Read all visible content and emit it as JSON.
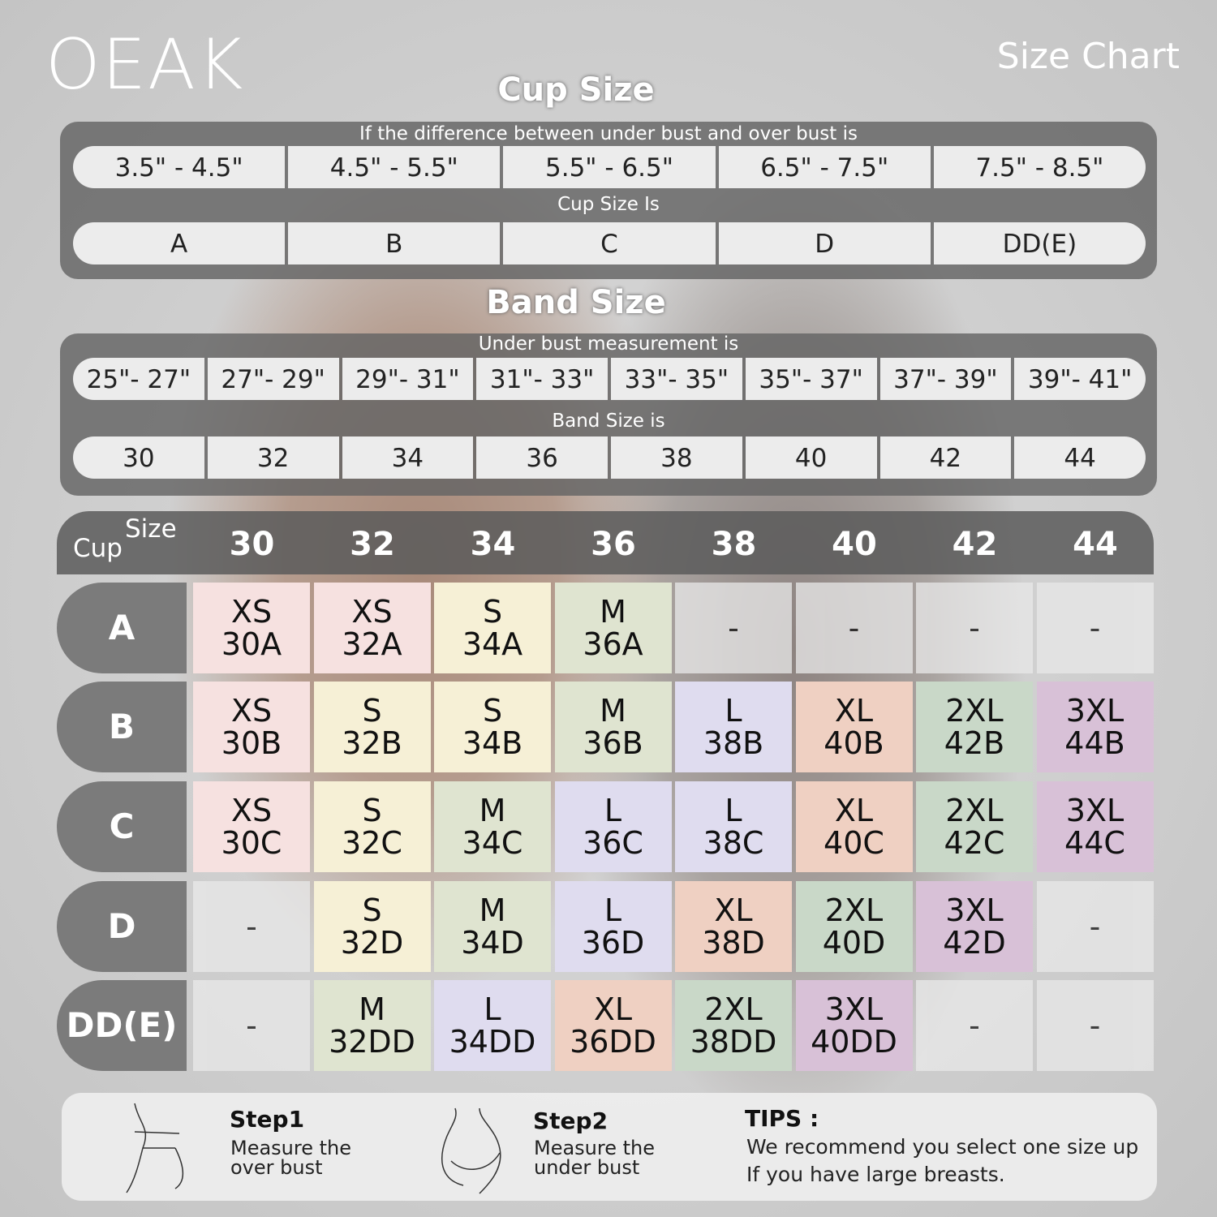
{
  "brand": "OEAK",
  "title": "Size Chart",
  "cup_section": {
    "title": "Cup Size",
    "sub1": "If the  difference between under bust and over bust is",
    "ranges": [
      "3.5\" -  4.5\"",
      "4.5\" -  5.5\"",
      "5.5\" -  6.5\"",
      "6.5\" -  7.5\"",
      "7.5\" -  8.5\""
    ],
    "sub2": "Cup Size Is",
    "cups": [
      "A",
      "B",
      "C",
      "D",
      "DD(E)"
    ]
  },
  "band_section": {
    "title": "Band Size",
    "sub1": "Under bust measurement is",
    "ranges": [
      "25\"- 27\"",
      "27\"- 29\"",
      "29\"- 31\"",
      "31\"- 33\"",
      "33\"- 35\"",
      "35\"- 37\"",
      "37\"- 39\"",
      "39\"- 41\""
    ],
    "sub2": "Band Size is",
    "bands": [
      "30",
      "32",
      "34",
      "36",
      "38",
      "40",
      "42",
      "44"
    ]
  },
  "table": {
    "corner_cup": "Cup",
    "corner_size": "Size",
    "columns": [
      "30",
      "32",
      "34",
      "36",
      "38",
      "40",
      "42",
      "44"
    ],
    "colors": {
      "pink": "#f6e1e0",
      "yellow": "#f6f0d6",
      "sage": "#dfe4d0",
      "lavender": "#dfdcef",
      "peach": "#efd0c2",
      "green": "#c9d8c8",
      "purple": "#d8c1d7",
      "empty": "#e9e9e9"
    },
    "rows": [
      {
        "label": "A",
        "cells": [
          [
            "XS",
            "30A",
            "pink"
          ],
          [
            "XS",
            "32A",
            "pink"
          ],
          [
            "S",
            "34A",
            "yellow"
          ],
          [
            "M",
            "36A",
            "sage"
          ],
          [
            "-",
            "",
            "empty"
          ],
          [
            "-",
            "",
            "empty"
          ],
          [
            "-",
            "",
            "empty"
          ],
          [
            "-",
            "",
            "empty"
          ]
        ]
      },
      {
        "label": "B",
        "cells": [
          [
            "XS",
            "30B",
            "pink"
          ],
          [
            "S",
            "32B",
            "yellow"
          ],
          [
            "S",
            "34B",
            "yellow"
          ],
          [
            "M",
            "36B",
            "sage"
          ],
          [
            "L",
            "38B",
            "lavender"
          ],
          [
            "XL",
            "40B",
            "peach"
          ],
          [
            "2XL",
            "42B",
            "green"
          ],
          [
            "3XL",
            "44B",
            "purple"
          ]
        ]
      },
      {
        "label": "C",
        "cells": [
          [
            "XS",
            "30C",
            "pink"
          ],
          [
            "S",
            "32C",
            "yellow"
          ],
          [
            "M",
            "34C",
            "sage"
          ],
          [
            "L",
            "36C",
            "lavender"
          ],
          [
            "L",
            "38C",
            "lavender"
          ],
          [
            "XL",
            "40C",
            "peach"
          ],
          [
            "2XL",
            "42C",
            "green"
          ],
          [
            "3XL",
            "44C",
            "purple"
          ]
        ]
      },
      {
        "label": "D",
        "cells": [
          [
            "-",
            "",
            "empty"
          ],
          [
            "S",
            "32D",
            "yellow"
          ],
          [
            "M",
            "34D",
            "sage"
          ],
          [
            "L",
            "36D",
            "lavender"
          ],
          [
            "XL",
            "38D",
            "peach"
          ],
          [
            "2XL",
            "40D",
            "green"
          ],
          [
            "3XL",
            "42D",
            "purple"
          ],
          [
            "-",
            "",
            "empty"
          ]
        ]
      },
      {
        "label": "DD(E)",
        "cells": [
          [
            "-",
            "",
            "empty"
          ],
          [
            "M",
            "32DD",
            "sage"
          ],
          [
            "L",
            "34DD",
            "lavender"
          ],
          [
            "XL",
            "36DD",
            "peach"
          ],
          [
            "2XL",
            "38DD",
            "green"
          ],
          [
            "3XL",
            "40DD",
            "purple"
          ],
          [
            "-",
            "",
            "empty"
          ],
          [
            "-",
            "",
            "empty"
          ]
        ]
      }
    ]
  },
  "steps": {
    "step1_title": "Step1",
    "step1_line1": "Measure the",
    "step1_line2": "over bust",
    "step2_title": "Step2",
    "step2_line1": "Measure the",
    "step2_line2": "under bust",
    "tips_title": "TIPS :",
    "tips_line1": "We recommend you select one size up",
    "tips_line2": "If you have large breasts."
  }
}
